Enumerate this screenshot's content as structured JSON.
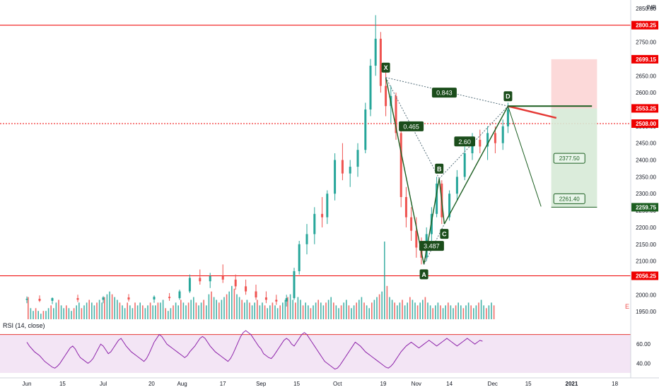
{
  "chart_data": {
    "type": "candlestick",
    "currency": "INR",
    "price_axis": {
      "ylim": [
        1900,
        2875
      ],
      "ticks": [
        1950,
        2000,
        2050,
        2100,
        2150,
        2200,
        2250,
        2300,
        2350,
        2400,
        2450,
        2500,
        2550,
        2600,
        2650,
        2700,
        2750,
        2800,
        2850
      ],
      "grid": false
    },
    "time_axis": {
      "ticks": [
        {
          "label": "Jun",
          "d": 0
        },
        {
          "label": "15",
          "d": 14
        },
        {
          "label": "Jul",
          "d": 30
        },
        {
          "label": "20",
          "d": 49
        },
        {
          "label": "Aug",
          "d": 61
        },
        {
          "label": "17",
          "d": 77
        },
        {
          "label": "Sep",
          "d": 92
        },
        {
          "label": "15",
          "d": 106
        },
        {
          "label": "Oct",
          "d": 122
        },
        {
          "label": "19",
          "d": 140
        },
        {
          "label": "Nov",
          "d": 153
        },
        {
          "label": "14",
          "d": 166
        },
        {
          "label": "Dec",
          "d": 183
        },
        {
          "label": "15",
          "d": 197
        },
        {
          "label": "2021",
          "d": 214
        },
        {
          "label": "18",
          "d": 231
        }
      ]
    },
    "price_levels": [
      {
        "label": "2800.25",
        "value": 2800.25,
        "color": "#ef0000",
        "line": "solid"
      },
      {
        "label": "2508.00",
        "value": 2508.0,
        "color": "#ef0000",
        "line": "dotted"
      },
      {
        "label": "2056.25",
        "value": 2056.25,
        "color": "#ef0000",
        "line": "solid"
      }
    ],
    "axis_badges": [
      {
        "label": "2800.25",
        "value": 2800.25,
        "color": "#ef0000"
      },
      {
        "label": "2699.15",
        "value": 2699.15,
        "color": "#ef0000"
      },
      {
        "label": "2553.25",
        "value": 2553.25,
        "color": "#ef0000"
      },
      {
        "label": "2508.00",
        "value": 2508.0,
        "color": "#ef0000"
      },
      {
        "label": "2259.75",
        "value": 2259.75,
        "color": "#1b5e20"
      },
      {
        "label": "2056.25",
        "value": 2056.25,
        "color": "#ef0000"
      }
    ],
    "harmonic_pattern": {
      "points": [
        {
          "name": "X",
          "d": 141,
          "value": 2645
        },
        {
          "name": "A",
          "d": 156,
          "value": 2090
        },
        {
          "name": "B",
          "d": 162,
          "value": 2345
        },
        {
          "name": "C",
          "d": 164,
          "value": 2210
        },
        {
          "name": "D",
          "d": 189,
          "value": 2560
        }
      ],
      "ratios": [
        {
          "label": "0.465",
          "d": 151,
          "value": 2500
        },
        {
          "label": "0.843",
          "d": 164,
          "value": 2600
        },
        {
          "label": "2.60",
          "d": 172,
          "value": 2455
        },
        {
          "label": "3.487",
          "d": 159,
          "value": 2145
        }
      ]
    },
    "projection_labels": [
      {
        "label": "2377.50",
        "d": 207,
        "value": 2405
      },
      {
        "label": "2261.40",
        "d": 207,
        "value": 2285
      }
    ],
    "position": {
      "entry": 2553.25,
      "stop": 2699.15,
      "target": 2259.75,
      "d_start": 206,
      "d_end": 224
    },
    "volume_axis_mark": "E",
    "rsi": {
      "label": "RSI (14, close)",
      "ticks": [
        40,
        60
      ],
      "ylim": [
        30,
        80
      ],
      "overbought": 70,
      "color": "#8e24aa",
      "band_color": "#f3e5f5"
    },
    "price_series": [
      {
        "d": 0,
        "o": 1985,
        "h": 1995,
        "l": 1975,
        "c": 1988
      },
      {
        "d": 5,
        "o": 1988,
        "h": 1998,
        "l": 1978,
        "c": 1982
      },
      {
        "d": 10,
        "o": 1982,
        "h": 1992,
        "l": 1972,
        "c": 1990
      },
      {
        "d": 20,
        "o": 1990,
        "h": 2000,
        "l": 1978,
        "c": 1985
      },
      {
        "d": 30,
        "o": 1985,
        "h": 1996,
        "l": 1975,
        "c": 1992
      },
      {
        "d": 40,
        "o": 1992,
        "h": 2002,
        "l": 1980,
        "c": 1986
      },
      {
        "d": 50,
        "o": 1986,
        "h": 1998,
        "l": 1976,
        "c": 1994
      },
      {
        "d": 56,
        "o": 1994,
        "h": 2005,
        "l": 1982,
        "c": 1990
      },
      {
        "d": 60,
        "o": 1990,
        "h": 2015,
        "l": 1985,
        "c": 2010
      },
      {
        "d": 64,
        "o": 2010,
        "h": 2060,
        "l": 2005,
        "c": 2050
      },
      {
        "d": 68,
        "o": 2050,
        "h": 2075,
        "l": 2030,
        "c": 2040
      },
      {
        "d": 72,
        "o": 2040,
        "h": 2065,
        "l": 2020,
        "c": 2055
      },
      {
        "d": 77,
        "o": 2055,
        "h": 2090,
        "l": 2035,
        "c": 2045
      },
      {
        "d": 82,
        "o": 2045,
        "h": 2060,
        "l": 2015,
        "c": 2025
      },
      {
        "d": 86,
        "o": 2025,
        "h": 2045,
        "l": 2000,
        "c": 2010
      },
      {
        "d": 90,
        "o": 2010,
        "h": 2030,
        "l": 1985,
        "c": 1992
      },
      {
        "d": 94,
        "o": 1992,
        "h": 2010,
        "l": 1975,
        "c": 1985
      },
      {
        "d": 98,
        "o": 1985,
        "h": 2000,
        "l": 1970,
        "c": 1980
      },
      {
        "d": 102,
        "o": 1980,
        "h": 2000,
        "l": 1965,
        "c": 1990
      },
      {
        "d": 105,
        "o": 1990,
        "h": 2080,
        "l": 1985,
        "c": 2070
      },
      {
        "d": 107,
        "o": 2070,
        "h": 2160,
        "l": 2060,
        "c": 2150
      },
      {
        "d": 110,
        "o": 2150,
        "h": 2210,
        "l": 2120,
        "c": 2180
      },
      {
        "d": 113,
        "o": 2180,
        "h": 2260,
        "l": 2150,
        "c": 2240
      },
      {
        "d": 116,
        "o": 2240,
        "h": 2290,
        "l": 2200,
        "c": 2230
      },
      {
        "d": 118,
        "o": 2230,
        "h": 2310,
        "l": 2210,
        "c": 2300
      },
      {
        "d": 121,
        "o": 2300,
        "h": 2420,
        "l": 2280,
        "c": 2400
      },
      {
        "d": 124,
        "o": 2400,
        "h": 2450,
        "l": 2340,
        "c": 2360
      },
      {
        "d": 127,
        "o": 2360,
        "h": 2400,
        "l": 2320,
        "c": 2380
      },
      {
        "d": 130,
        "o": 2380,
        "h": 2450,
        "l": 2350,
        "c": 2430
      },
      {
        "d": 133,
        "o": 2430,
        "h": 2570,
        "l": 2420,
        "c": 2550
      },
      {
        "d": 135,
        "o": 2550,
        "h": 2700,
        "l": 2530,
        "c": 2680
      },
      {
        "d": 137,
        "o": 2680,
        "h": 2830,
        "l": 2650,
        "c": 2760
      },
      {
        "d": 139,
        "o": 2760,
        "h": 2780,
        "l": 2600,
        "c": 2620
      },
      {
        "d": 141,
        "o": 2620,
        "h": 2660,
        "l": 2530,
        "c": 2560
      },
      {
        "d": 143,
        "o": 2560,
        "h": 2620,
        "l": 2510,
        "c": 2590
      },
      {
        "d": 145,
        "o": 2590,
        "h": 2600,
        "l": 2460,
        "c": 2480
      },
      {
        "d": 147,
        "o": 2480,
        "h": 2500,
        "l": 2260,
        "c": 2290
      },
      {
        "d": 149,
        "o": 2290,
        "h": 2320,
        "l": 2200,
        "c": 2230
      },
      {
        "d": 151,
        "o": 2230,
        "h": 2260,
        "l": 2160,
        "c": 2190
      },
      {
        "d": 153,
        "o": 2190,
        "h": 2230,
        "l": 2110,
        "c": 2140
      },
      {
        "d": 155,
        "o": 2140,
        "h": 2170,
        "l": 2090,
        "c": 2110
      },
      {
        "d": 157,
        "o": 2110,
        "h": 2200,
        "l": 2100,
        "c": 2180
      },
      {
        "d": 159,
        "o": 2180,
        "h": 2260,
        "l": 2160,
        "c": 2240
      },
      {
        "d": 161,
        "o": 2240,
        "h": 2350,
        "l": 2230,
        "c": 2330
      },
      {
        "d": 163,
        "o": 2330,
        "h": 2340,
        "l": 2210,
        "c": 2230
      },
      {
        "d": 166,
        "o": 2230,
        "h": 2310,
        "l": 2220,
        "c": 2300
      },
      {
        "d": 169,
        "o": 2300,
        "h": 2370,
        "l": 2280,
        "c": 2350
      },
      {
        "d": 172,
        "o": 2350,
        "h": 2440,
        "l": 2340,
        "c": 2420
      },
      {
        "d": 175,
        "o": 2420,
        "h": 2480,
        "l": 2400,
        "c": 2460
      },
      {
        "d": 178,
        "o": 2460,
        "h": 2490,
        "l": 2420,
        "c": 2440
      },
      {
        "d": 181,
        "o": 2440,
        "h": 2500,
        "l": 2400,
        "c": 2480
      },
      {
        "d": 184,
        "o": 2480,
        "h": 2500,
        "l": 2420,
        "c": 2450
      },
      {
        "d": 187,
        "o": 2450,
        "h": 2520,
        "l": 2430,
        "c": 2500
      },
      {
        "d": 189,
        "o": 2500,
        "h": 2570,
        "l": 2480,
        "c": 2550
      }
    ],
    "volume_series": [
      8,
      4,
      3,
      4,
      3,
      2,
      3,
      3,
      4,
      5,
      4,
      6,
      7,
      5,
      4,
      5,
      4,
      3,
      4,
      5,
      6,
      4,
      5,
      6,
      7,
      6,
      5,
      6,
      7,
      6,
      8,
      9,
      10,
      9,
      8,
      7,
      6,
      5,
      4,
      6,
      5,
      4,
      6,
      5,
      6,
      5,
      4,
      5,
      6,
      5,
      5,
      6,
      6,
      7,
      4,
      3,
      4,
      5,
      6,
      5,
      7,
      6,
      5,
      6,
      7,
      8,
      6,
      5,
      6,
      7,
      5,
      9,
      10,
      8,
      7,
      6,
      7,
      8,
      9,
      10,
      12,
      11,
      9,
      8,
      7,
      6,
      7,
      6,
      5,
      6,
      7,
      5,
      6,
      5,
      4,
      5,
      6,
      5,
      4,
      5,
      6,
      7,
      8,
      9,
      7,
      6,
      8,
      7,
      5,
      6,
      5,
      4,
      5,
      6,
      7,
      6,
      5,
      6,
      7,
      8,
      6,
      5,
      4,
      5,
      6,
      7,
      5,
      4,
      5,
      6,
      7,
      8,
      6,
      5,
      4,
      6,
      7,
      8,
      9,
      10,
      28,
      12,
      8,
      7,
      6,
      5,
      6,
      7,
      5,
      6,
      8,
      7,
      6,
      5,
      6,
      7,
      8,
      6,
      5,
      4,
      5,
      6,
      5,
      4,
      5,
      6,
      5,
      4,
      5,
      6,
      5,
      4,
      5,
      6,
      5,
      4,
      5,
      6,
      7,
      5,
      4,
      5,
      6,
      5
    ],
    "rsi_series": [
      62,
      58,
      55,
      52,
      50,
      48,
      45,
      42,
      40,
      38,
      36,
      35,
      37,
      40,
      44,
      48,
      52,
      56,
      58,
      55,
      50,
      46,
      44,
      42,
      40,
      42,
      45,
      50,
      55,
      60,
      58,
      54,
      50,
      52,
      56,
      60,
      64,
      66,
      62,
      58,
      55,
      52,
      50,
      48,
      46,
      44,
      42,
      45,
      50,
      56,
      62,
      66,
      70,
      68,
      64,
      60,
      58,
      56,
      54,
      52,
      50,
      48,
      46,
      48,
      52,
      55,
      58,
      62,
      66,
      68,
      66,
      62,
      58,
      55,
      52,
      50,
      48,
      46,
      44,
      42,
      45,
      50,
      56,
      62,
      68,
      72,
      74,
      72,
      70,
      66,
      62,
      58,
      55,
      50,
      48,
      46,
      45,
      48,
      52,
      56,
      60,
      64,
      66,
      64,
      60,
      58,
      62,
      66,
      70,
      72,
      70,
      66,
      62,
      58,
      54,
      50,
      46,
      42,
      40,
      38,
      36,
      34,
      35,
      38,
      42,
      46,
      50,
      54,
      58,
      62,
      60,
      58,
      55,
      52,
      50,
      48,
      46,
      44,
      42,
      40,
      38,
      36,
      35,
      37,
      40,
      44,
      48,
      52,
      55,
      58,
      60,
      62,
      60,
      58,
      56,
      58,
      60,
      62,
      64,
      62,
      60,
      58,
      60,
      62,
      64,
      66,
      64,
      62,
      60,
      58,
      60,
      62,
      64,
      66,
      64,
      62,
      60,
      62,
      64,
      63
    ]
  }
}
